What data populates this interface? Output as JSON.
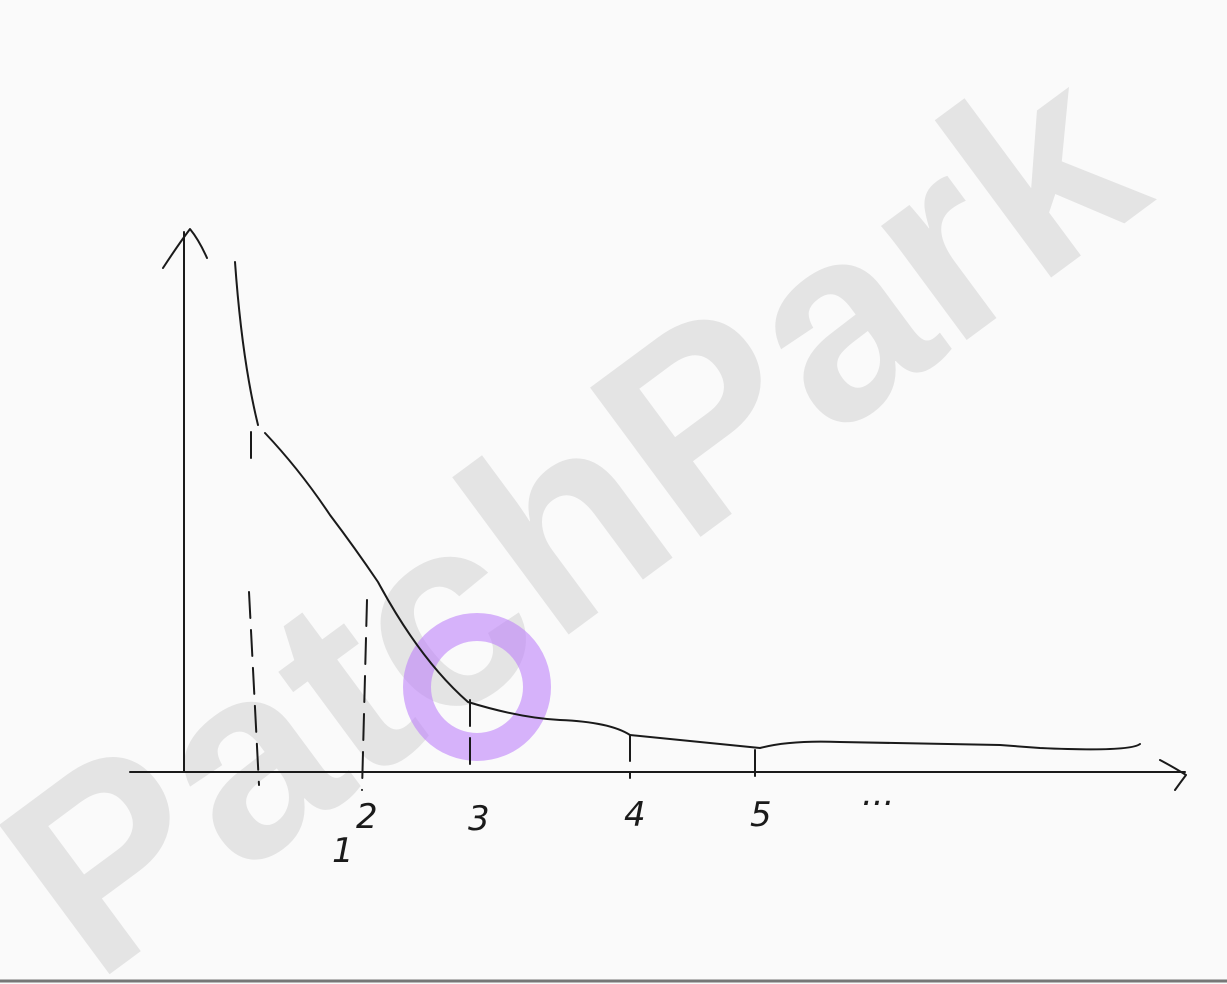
{
  "watermark": "PatchPark",
  "x_labels": [
    "1",
    "2",
    "3",
    "4",
    "5",
    "..."
  ]
}
